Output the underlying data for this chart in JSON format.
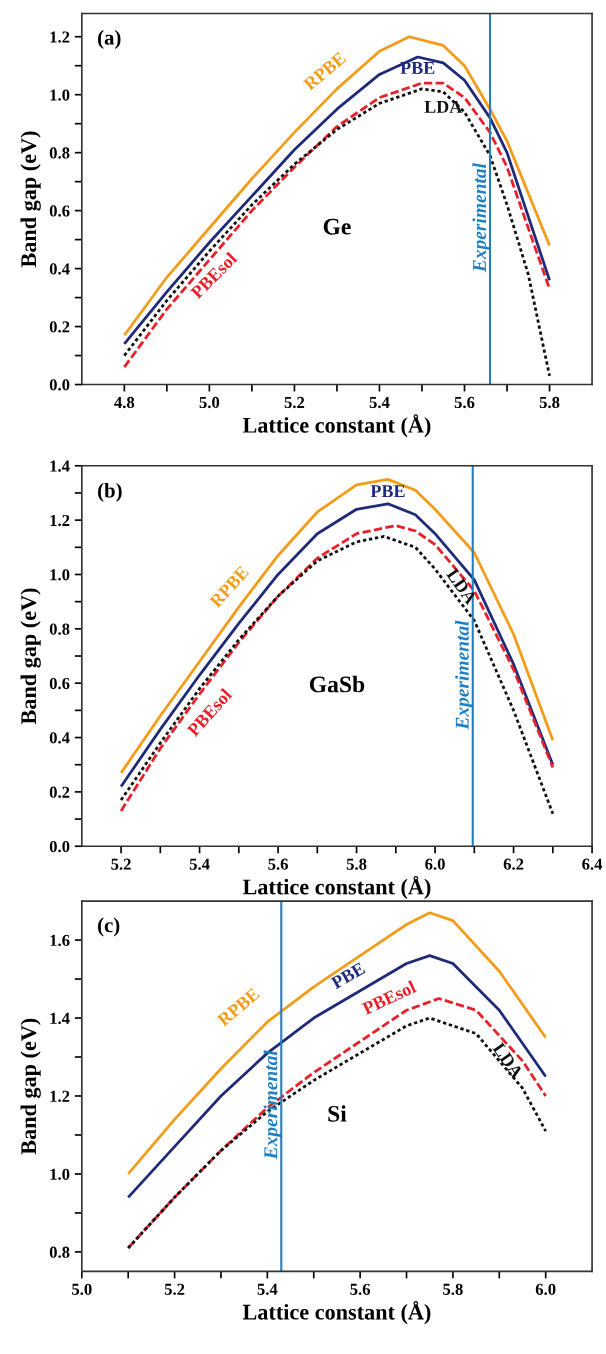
{
  "chart_data": [
    {
      "type": "line",
      "xlabel": "Lattice constant (Å)",
      "ylabel": "Band gap (eV)",
      "annotations": [
        "(a)",
        "Ge"
      ],
      "xlim": [
        4.7,
        5.9
      ],
      "ylim": [
        0,
        1.28
      ],
      "xticks": [
        4.8,
        {
          "value": 4.9,
          "label": null
        },
        {
          "value": 5,
          "label": "5.0"
        },
        {
          "value": 5.1,
          "label": null
        },
        5.2,
        {
          "value": 5.3,
          "label": null
        },
        5.4,
        {
          "value": 5.5,
          "label": null
        },
        5.6,
        {
          "value": 5.7,
          "label": null
        },
        5.8
      ],
      "yticks": [
        {
          "value": 0,
          "label": "0.0"
        },
        {
          "value": 0.1,
          "label": null
        },
        0.2,
        {
          "value": 0.3,
          "label": null
        },
        0.4,
        {
          "value": 0.5,
          "label": null
        },
        0.6,
        {
          "value": 0.7,
          "label": null
        },
        0.8,
        {
          "value": 0.9,
          "label": null
        },
        {
          "value": 1,
          "label": "1.0"
        },
        {
          "value": 1.1,
          "label": null
        },
        1.2
      ],
      "ref_lines": [
        {
          "axis": "x",
          "value": 5.66,
          "label": "Experimental",
          "color": "#1f7fc4"
        }
      ],
      "series": [
        {
          "name": "RPBE",
          "color": "#f39c1a",
          "line_style": "solid",
          "x": [
            4.8,
            4.9,
            5.0,
            5.1,
            5.2,
            5.3,
            5.4,
            5.47,
            5.55,
            5.6,
            5.66,
            5.7,
            5.8
          ],
          "values": [
            0.17,
            0.37,
            0.54,
            0.71,
            0.87,
            1.02,
            1.15,
            1.2,
            1.17,
            1.1,
            0.95,
            0.84,
            0.48
          ]
        },
        {
          "name": "PBE",
          "color": "#1f2a78",
          "line_style": "solid",
          "x": [
            4.8,
            4.9,
            5.0,
            5.1,
            5.2,
            5.3,
            5.4,
            5.49,
            5.55,
            5.6,
            5.66,
            5.7,
            5.8
          ],
          "values": [
            0.14,
            0.32,
            0.49,
            0.65,
            0.81,
            0.95,
            1.07,
            1.13,
            1.11,
            1.05,
            0.92,
            0.8,
            0.36
          ]
        },
        {
          "name": "PBEsol",
          "color": "#e8202a",
          "line_style": "dashed",
          "x": [
            4.8,
            4.9,
            5.0,
            5.1,
            5.2,
            5.3,
            5.4,
            5.5,
            5.55,
            5.6,
            5.66,
            5.7,
            5.8
          ],
          "values": [
            0.06,
            0.26,
            0.43,
            0.6,
            0.75,
            0.89,
            0.99,
            1.04,
            1.04,
            0.99,
            0.87,
            0.75,
            0.33
          ]
        },
        {
          "name": "LDA",
          "color": "#111111",
          "line_style": "dotted",
          "x": [
            4.8,
            4.9,
            5.0,
            5.1,
            5.2,
            5.3,
            5.4,
            5.5,
            5.55,
            5.6,
            5.66,
            5.7,
            5.75,
            5.8
          ],
          "values": [
            0.1,
            0.29,
            0.46,
            0.62,
            0.76,
            0.88,
            0.97,
            1.02,
            1.01,
            0.94,
            0.79,
            0.62,
            0.38,
            0.03
          ]
        }
      ]
    },
    {
      "type": "line",
      "xlabel": "Lattice constant (Å)",
      "ylabel": "Band gap (eV)",
      "annotations": [
        "(b)",
        "GaSb"
      ],
      "xlim": [
        5.1,
        6.4
      ],
      "ylim": [
        0,
        1.4
      ],
      "xticks": [
        5.2,
        {
          "value": 5.3,
          "label": null
        },
        5.4,
        {
          "value": 5.5,
          "label": null
        },
        5.6,
        {
          "value": 5.7,
          "label": null
        },
        5.8,
        {
          "value": 5.9,
          "label": null
        },
        {
          "value": 6,
          "label": "6.0"
        },
        {
          "value": 6.1,
          "label": null
        },
        6.2,
        {
          "value": 6.3,
          "label": null
        },
        6.4
      ],
      "yticks": [
        {
          "value": 0,
          "label": "0.0"
        },
        {
          "value": 0.1,
          "label": null
        },
        0.2,
        {
          "value": 0.3,
          "label": null
        },
        0.4,
        {
          "value": 0.5,
          "label": null
        },
        0.6,
        {
          "value": 0.7,
          "label": null
        },
        0.8,
        {
          "value": 0.9,
          "label": null
        },
        {
          "value": 1,
          "label": "1.0"
        },
        {
          "value": 1.1,
          "label": null
        },
        1.2,
        {
          "value": 1.3,
          "label": null
        },
        1.4
      ],
      "ref_lines": [
        {
          "axis": "x",
          "value": 6.096,
          "label": "Experimental",
          "color": "#1f7fc4"
        }
      ],
      "series": [
        {
          "name": "RPBE",
          "color": "#f39c1a",
          "line_style": "solid",
          "x": [
            5.2,
            5.3,
            5.4,
            5.5,
            5.6,
            5.7,
            5.8,
            5.88,
            5.95,
            6.0,
            6.1,
            6.2,
            6.3
          ],
          "values": [
            0.27,
            0.48,
            0.68,
            0.88,
            1.07,
            1.23,
            1.33,
            1.35,
            1.31,
            1.24,
            1.08,
            0.78,
            0.39
          ]
        },
        {
          "name": "PBE",
          "color": "#1f2a78",
          "line_style": "solid",
          "x": [
            5.2,
            5.3,
            5.4,
            5.5,
            5.6,
            5.7,
            5.8,
            5.88,
            5.95,
            6.0,
            6.1,
            6.2,
            6.3
          ],
          "values": [
            0.22,
            0.43,
            0.63,
            0.82,
            1.0,
            1.15,
            1.24,
            1.26,
            1.22,
            1.15,
            0.98,
            0.67,
            0.3
          ]
        },
        {
          "name": "PBEsol",
          "color": "#e8202a",
          "line_style": "dashed",
          "x": [
            5.2,
            5.3,
            5.4,
            5.5,
            5.6,
            5.7,
            5.8,
            5.9,
            5.95,
            6.0,
            6.1,
            6.2,
            6.3
          ],
          "values": [
            0.13,
            0.36,
            0.56,
            0.75,
            0.92,
            1.06,
            1.15,
            1.18,
            1.16,
            1.11,
            0.94,
            0.65,
            0.29
          ]
        },
        {
          "name": "LDA",
          "color": "#111111",
          "line_style": "dotted",
          "x": [
            5.2,
            5.3,
            5.4,
            5.5,
            5.6,
            5.7,
            5.8,
            5.87,
            5.95,
            6.0,
            6.1,
            6.2,
            6.3
          ],
          "values": [
            0.17,
            0.38,
            0.58,
            0.76,
            0.92,
            1.05,
            1.12,
            1.14,
            1.1,
            1.02,
            0.83,
            0.5,
            0.12
          ]
        }
      ]
    },
    {
      "type": "line",
      "xlabel": "Lattice constant (Å)",
      "ylabel": "Band gap (eV)",
      "annotations": [
        "(c)",
        "Si"
      ],
      "xlim": [
        5.0,
        6.1
      ],
      "ylim": [
        0.75,
        1.7
      ],
      "xticks": [
        {
          "value": 5,
          "label": "5.0"
        },
        {
          "value": 5.1,
          "label": null
        },
        5.2,
        {
          "value": 5.3,
          "label": null
        },
        5.4,
        {
          "value": 5.5,
          "label": null
        },
        5.6,
        {
          "value": 5.7,
          "label": null
        },
        5.8,
        {
          "value": 5.9,
          "label": null
        },
        {
          "value": 6,
          "label": "6.0"
        }
      ],
      "yticks": [
        0.8,
        {
          "value": 0.9,
          "label": null
        },
        {
          "value": 1,
          "label": "1.0"
        },
        {
          "value": 1.1,
          "label": null
        },
        1.2,
        {
          "value": 1.3,
          "label": null
        },
        1.4,
        {
          "value": 1.5,
          "label": null
        },
        1.6
      ],
      "ref_lines": [
        {
          "axis": "x",
          "value": 5.43,
          "label": "Experimental",
          "color": "#1f7fc4"
        }
      ],
      "series": [
        {
          "name": "RPBE",
          "color": "#f39c1a",
          "line_style": "solid",
          "x": [
            5.1,
            5.2,
            5.3,
            5.4,
            5.5,
            5.6,
            5.7,
            5.75,
            5.8,
            5.9,
            6.0
          ],
          "values": [
            1.0,
            1.14,
            1.27,
            1.39,
            1.48,
            1.56,
            1.64,
            1.67,
            1.65,
            1.52,
            1.35
          ]
        },
        {
          "name": "PBE",
          "color": "#1f2a78",
          "line_style": "solid",
          "x": [
            5.1,
            5.2,
            5.3,
            5.4,
            5.5,
            5.6,
            5.7,
            5.75,
            5.8,
            5.9,
            6.0
          ],
          "values": [
            0.94,
            1.07,
            1.2,
            1.31,
            1.4,
            1.47,
            1.54,
            1.56,
            1.54,
            1.42,
            1.25
          ]
        },
        {
          "name": "PBEsol",
          "color": "#e8202a",
          "line_style": "dashed",
          "x": [
            5.1,
            5.2,
            5.3,
            5.4,
            5.5,
            5.6,
            5.7,
            5.77,
            5.85,
            5.95,
            6.0
          ],
          "values": [
            0.81,
            0.94,
            1.06,
            1.17,
            1.26,
            1.34,
            1.42,
            1.45,
            1.42,
            1.29,
            1.2
          ]
        },
        {
          "name": "LDA",
          "color": "#111111",
          "line_style": "dotted",
          "x": [
            5.1,
            5.2,
            5.3,
            5.4,
            5.5,
            5.6,
            5.7,
            5.75,
            5.85,
            5.95,
            6.0
          ],
          "values": [
            0.81,
            0.94,
            1.06,
            1.16,
            1.24,
            1.31,
            1.38,
            1.4,
            1.36,
            1.22,
            1.11
          ]
        }
      ]
    }
  ]
}
